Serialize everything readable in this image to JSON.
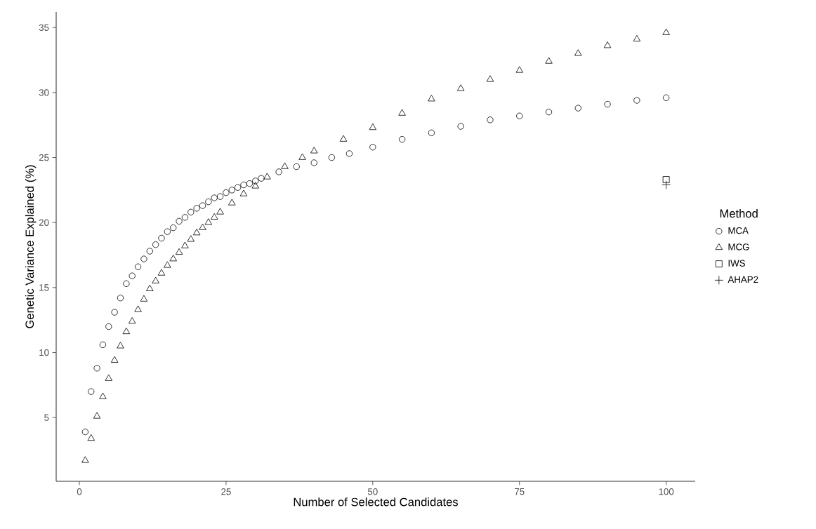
{
  "chart_data": {
    "type": "scatter",
    "xlabel": "Number of Selected Candidates",
    "ylabel": "Genetic Variance Explained (%)",
    "legend_title": "Method",
    "legend": "right",
    "grid": false,
    "xlim": [
      -3.95,
      104.95
    ],
    "ylim": [
      0.1,
      36.2
    ],
    "xticks": [
      0,
      25,
      50,
      75,
      100
    ],
    "yticks": [
      5,
      10,
      15,
      20,
      25,
      30,
      35
    ],
    "series": [
      {
        "name": "MCA",
        "color": "#000000",
        "marker": "circle",
        "x": [
          1,
          2,
          3,
          4,
          5,
          6,
          7,
          8,
          9,
          10,
          11,
          12,
          13,
          14,
          15,
          16,
          17,
          18,
          19,
          20,
          21,
          22,
          23,
          24,
          25,
          26,
          27,
          28,
          29,
          30,
          31,
          34,
          37,
          40,
          43,
          46,
          50,
          55,
          60,
          65,
          70,
          75,
          80,
          85,
          90,
          95,
          100
        ],
        "values": [
          3.9,
          7.0,
          8.8,
          10.6,
          12.0,
          13.1,
          14.2,
          15.3,
          15.9,
          16.6,
          17.2,
          17.8,
          18.3,
          18.8,
          19.3,
          19.6,
          20.1,
          20.4,
          20.8,
          21.1,
          21.3,
          21.6,
          21.9,
          22.0,
          22.3,
          22.5,
          22.7,
          22.9,
          23.0,
          23.2,
          23.4,
          23.9,
          24.3,
          24.6,
          25.0,
          25.3,
          25.8,
          26.4,
          26.9,
          27.4,
          27.9,
          28.2,
          28.5,
          28.8,
          29.1,
          29.4,
          29.6
        ]
      },
      {
        "name": "MCG",
        "color": "#000000",
        "marker": "triangle",
        "x": [
          1,
          2,
          3,
          4,
          5,
          6,
          7,
          8,
          9,
          10,
          11,
          12,
          13,
          14,
          15,
          16,
          17,
          18,
          19,
          20,
          21,
          22,
          23,
          24,
          26,
          28,
          30,
          32,
          35,
          38,
          40,
          45,
          50,
          55,
          60,
          65,
          70,
          75,
          80,
          85,
          90,
          95,
          100
        ],
        "values": [
          1.7,
          3.4,
          5.1,
          6.6,
          8.0,
          9.4,
          10.5,
          11.6,
          12.4,
          13.3,
          14.1,
          14.9,
          15.5,
          16.1,
          16.7,
          17.2,
          17.7,
          18.2,
          18.7,
          19.2,
          19.6,
          20.0,
          20.4,
          20.8,
          21.5,
          22.2,
          22.8,
          23.5,
          24.3,
          25.0,
          25.5,
          26.4,
          27.3,
          28.4,
          29.5,
          30.3,
          31.0,
          31.7,
          32.4,
          33.0,
          33.6,
          34.1,
          34.6
        ]
      },
      {
        "name": "IWS",
        "color": "#000000",
        "marker": "square",
        "x": [
          100
        ],
        "values": [
          23.3
        ]
      },
      {
        "name": "AHAP2",
        "color": "#000000",
        "marker": "cross",
        "x": [
          100
        ],
        "values": [
          22.9
        ]
      }
    ]
  }
}
